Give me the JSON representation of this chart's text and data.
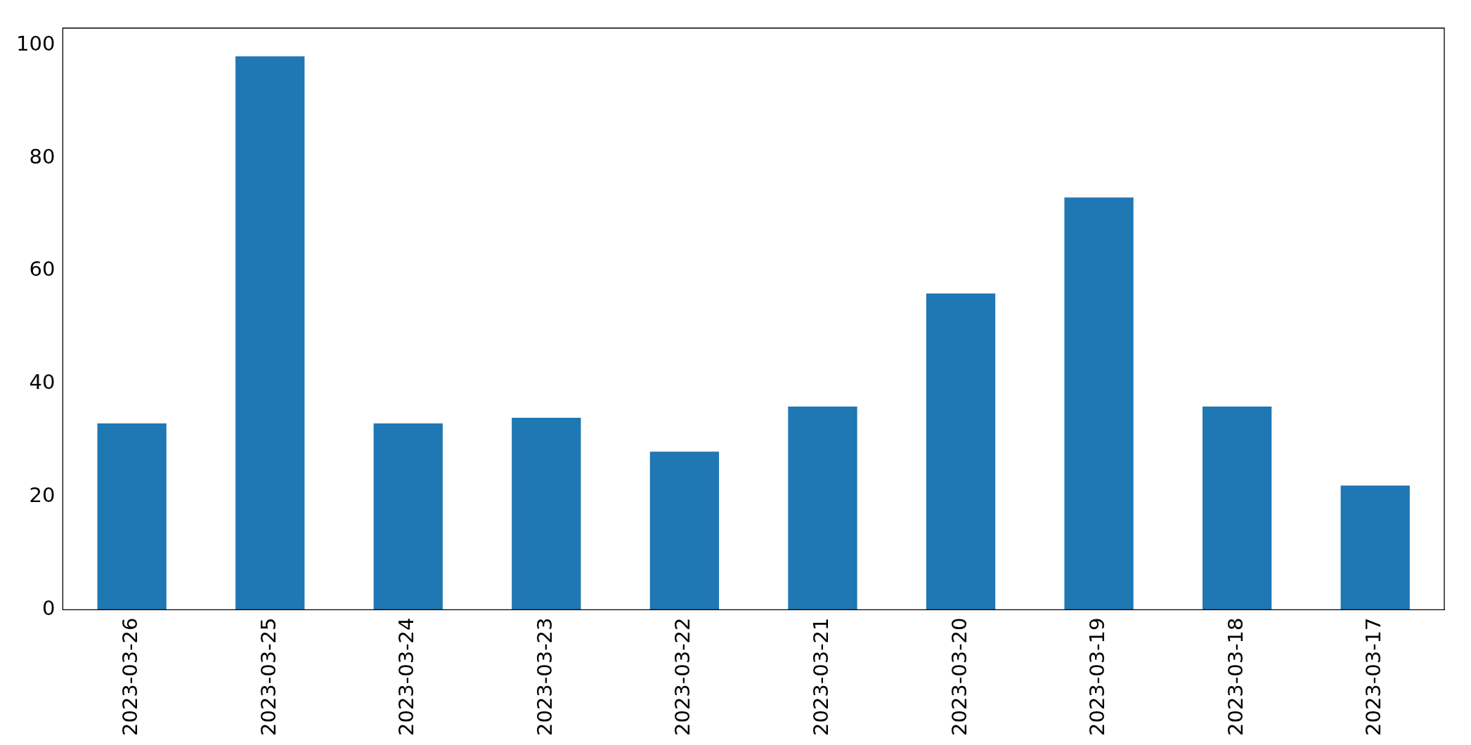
{
  "chart_data": {
    "type": "bar",
    "categories": [
      "2023-03-26",
      "2023-03-25",
      "2023-03-24",
      "2023-03-23",
      "2023-03-22",
      "2023-03-21",
      "2023-03-20",
      "2023-03-19",
      "2023-03-18",
      "2023-03-17"
    ],
    "values": [
      33,
      98,
      33,
      34,
      28,
      36,
      56,
      73,
      36,
      22
    ],
    "color": "#1f77b4",
    "ylim": [
      0,
      103
    ],
    "yticks": [
      0,
      20,
      40,
      60,
      80,
      100
    ],
    "grid": false,
    "legend": false
  }
}
